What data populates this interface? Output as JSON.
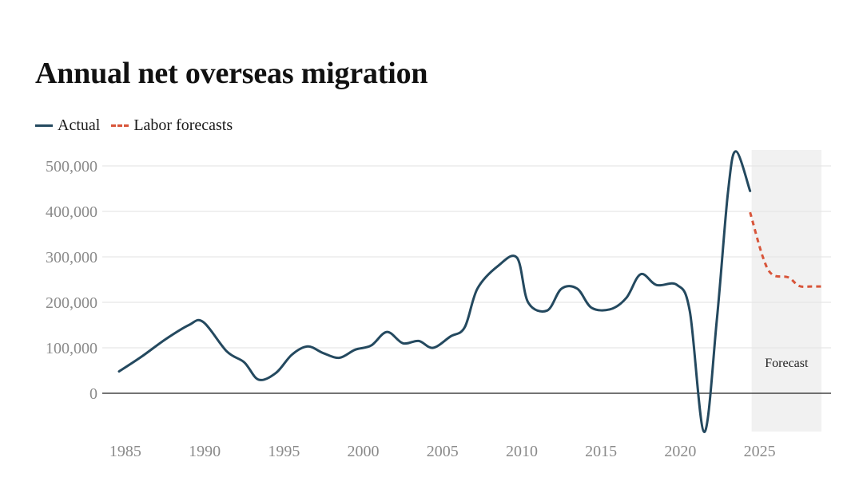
{
  "chart_data": {
    "type": "line",
    "title": "Annual net overseas migration",
    "xlabel": "",
    "ylabel": "",
    "xlim": [
      1984.4,
      2028.9
    ],
    "ylim": [
      -85000,
      540000
    ],
    "yticks": [
      0,
      100000,
      200000,
      300000,
      400000,
      500000
    ],
    "ytick_labels": [
      "0",
      "100,000",
      "200,000",
      "300,000",
      "400,000",
      "500,000"
    ],
    "xticks": [
      1985,
      1990,
      1995,
      2000,
      2005,
      2010,
      2015,
      2020,
      2025
    ],
    "xtick_labels": [
      "1985",
      "1990",
      "1995",
      "2000",
      "2005",
      "2010",
      "2015",
      "2020",
      "2025"
    ],
    "grid": true,
    "legend_position": "top-left",
    "series": [
      {
        "name": "Actual",
        "color": "#24495f",
        "style": "solid",
        "x": [
          1984.6,
          1986,
          1987.5,
          1989,
          1989.9,
          1991.4,
          1992.5,
          1993.4,
          1994.5,
          1995.5,
          1996.5,
          1997.5,
          1998.5,
          1999.5,
          2000.5,
          2001.5,
          2002.5,
          2003.5,
          2004.4,
          2005.5,
          2006.4,
          2007.2,
          2008.5,
          2009.7,
          2010.4,
          2011.6,
          2012.5,
          2013.5,
          2014.4,
          2015.6,
          2016.6,
          2017.5,
          2018.5,
          2019.8,
          2020.6,
          2021.5,
          2022.3,
          2023,
          2023.5,
          2024.4
        ],
        "y": [
          48000,
          80000,
          118000,
          150000,
          157000,
          92000,
          68000,
          30000,
          45000,
          85000,
          103000,
          88000,
          78000,
          96000,
          105000,
          135000,
          110000,
          115000,
          100000,
          125000,
          145000,
          230000,
          280000,
          298000,
          200000,
          182000,
          230000,
          230000,
          188000,
          185000,
          210000,
          262000,
          238000,
          238000,
          180000,
          -85000,
          160000,
          440000,
          532000,
          445000
        ]
      },
      {
        "name": "Labor forecasts",
        "color": "#d8553a",
        "style": "dashed",
        "x": [
          2024.4,
          2025.2,
          2025.8,
          2026.8,
          2027.5,
          2028.3,
          2028.9
        ],
        "y": [
          398000,
          300000,
          261000,
          255000,
          236000,
          235000,
          235000
        ]
      }
    ],
    "annotations": [
      {
        "text": "Forecast",
        "x_start": 2024.5,
        "x_end": 2028.9,
        "fill": "#f1f1f1"
      }
    ]
  }
}
